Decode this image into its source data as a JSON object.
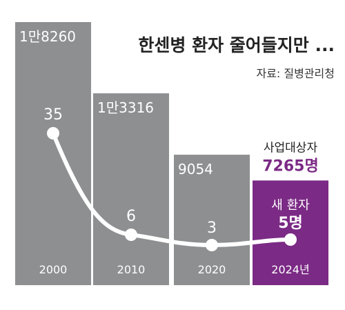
{
  "chart_data": {
    "type": "bar",
    "title": "한센병 환자 줄어들지만 ...",
    "source": "자료: 질병관리청",
    "categories": [
      "2000",
      "2010",
      "2020",
      "2024년"
    ],
    "bars": {
      "name": "사업대상자",
      "values": [
        18260,
        13316,
        9054,
        7265
      ],
      "labels": [
        "1만8260",
        "1만3316",
        "9054",
        "7265명"
      ],
      "highlight_index": 3,
      "highlight_label": "사업대상자"
    },
    "line": {
      "name": "새 환자",
      "values": [
        35,
        6,
        3,
        5
      ],
      "labels": [
        "35",
        "6",
        "3",
        "5명"
      ],
      "highlight_label": "새 환자"
    },
    "colors": {
      "bar": "#8d8f90",
      "bar_highlight": "#7b2a85",
      "accent_text": "#7b2a85",
      "line": "#ffffff",
      "title": "#222222"
    }
  }
}
